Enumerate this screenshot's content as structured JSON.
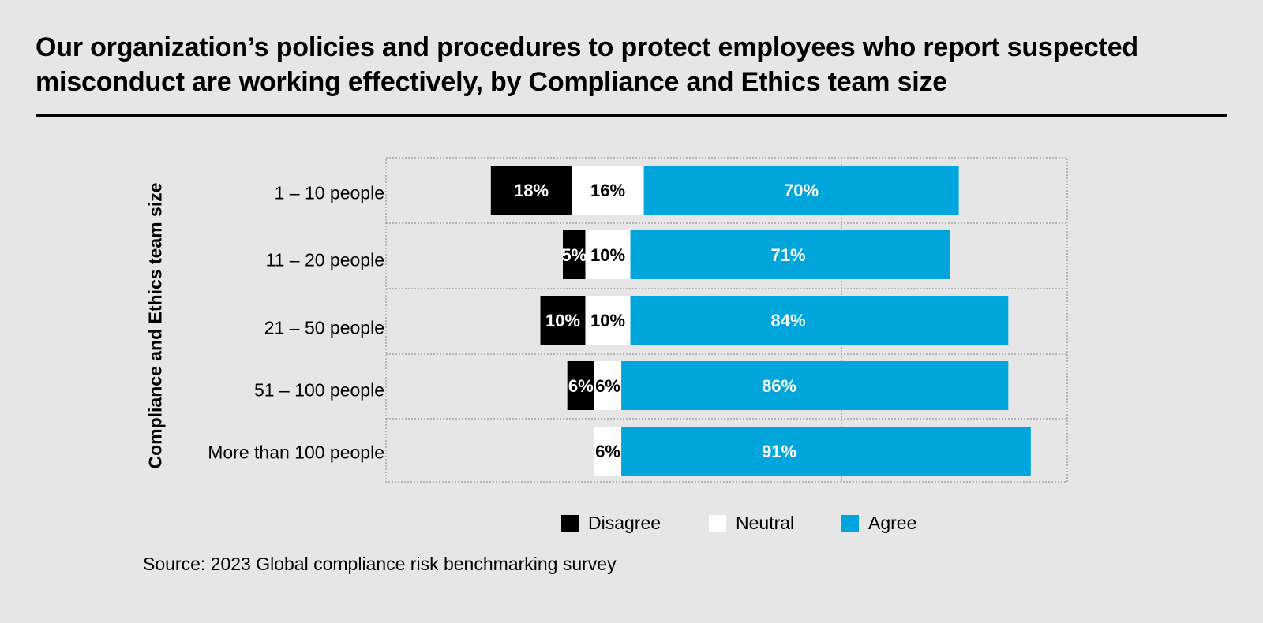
{
  "chart_data": {
    "type": "bar",
    "orientation": "horizontal-diverging-stacked",
    "title": "Our organization’s policies and procedures to protect employees who report suspected misconduct are working effectively, by Compliance and Ethics team size",
    "ylabel": "Compliance and Ethics team size",
    "xlabel": "",
    "categories": [
      "1 – 10 people",
      "11 – 20 people",
      "21 – 50 people",
      "51 – 100 people",
      "More than 100 people"
    ],
    "series": [
      {
        "name": "Disagree",
        "color": "#000000",
        "label_color": "#ffffff",
        "values": [
          18,
          5,
          10,
          6,
          0
        ],
        "labels": [
          "18%",
          "5%",
          "10%",
          "6%",
          ""
        ]
      },
      {
        "name": "Neutral",
        "color": "#ffffff",
        "label_color": "#000000",
        "values": [
          16,
          10,
          10,
          6,
          6
        ],
        "labels": [
          "16%",
          "10%",
          "10%",
          "6%",
          "6%"
        ]
      },
      {
        "name": "Agree",
        "color": "#00a5db",
        "label_color": "#ffffff",
        "values": [
          70,
          71,
          84,
          86,
          91
        ],
        "labels": [
          "70%",
          "71%",
          "84%",
          "86%",
          "91%"
        ]
      }
    ],
    "grid": true,
    "legend_position": "bottom"
  },
  "source": "Source: 2023 Global compliance risk benchmarking survey"
}
